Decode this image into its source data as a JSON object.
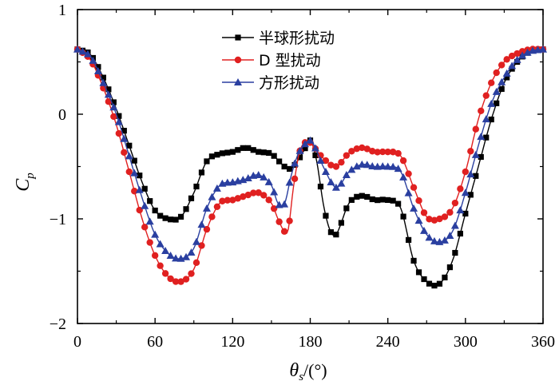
{
  "chart_data": {
    "type": "line",
    "title": "",
    "xlabel": "θs/(°)",
    "ylabel": "Cp",
    "xlabel_parts": {
      "symbol": "θ",
      "subscript": "s",
      "unit": "/(°)"
    },
    "ylabel_parts": {
      "symbol": "C",
      "subscript": "p"
    },
    "xlim": [
      0,
      360
    ],
    "ylim": [
      -2,
      1
    ],
    "xticks": [
      0,
      60,
      120,
      180,
      240,
      300,
      360
    ],
    "yticks": [
      1,
      0,
      -1,
      -2
    ],
    "grid": false,
    "legend_position": "top-center",
    "series": [
      {
        "name": "半球形扰动",
        "color": "#000000",
        "marker": "square",
        "x": [
          0,
          10,
          20,
          30,
          40,
          50,
          60,
          70,
          80,
          90,
          100,
          110,
          120,
          130,
          140,
          150,
          160,
          165,
          170,
          175,
          180,
          185,
          190,
          195,
          200,
          210,
          220,
          230,
          240,
          250,
          260,
          270,
          280,
          290,
          300,
          310,
          320,
          330,
          340,
          350,
          360
        ],
        "y": [
          0.62,
          0.57,
          0.35,
          0.05,
          -0.3,
          -0.65,
          -0.92,
          -1.0,
          -0.98,
          -0.75,
          -0.45,
          -0.38,
          -0.36,
          -0.32,
          -0.36,
          -0.38,
          -0.5,
          -0.52,
          -0.45,
          -0.35,
          -0.25,
          -0.45,
          -0.85,
          -1.1,
          -1.15,
          -0.85,
          -0.78,
          -0.82,
          -0.82,
          -0.9,
          -1.4,
          -1.6,
          -1.62,
          -1.4,
          -0.95,
          -0.5,
          -0.05,
          0.3,
          0.5,
          0.6,
          0.62
        ]
      },
      {
        "name": "D 型扰动",
        "color": "#e02020",
        "marker": "circle",
        "x": [
          0,
          10,
          20,
          30,
          40,
          50,
          60,
          70,
          80,
          90,
          100,
          110,
          120,
          130,
          140,
          150,
          155,
          160,
          163,
          167,
          172,
          178,
          182,
          190,
          200,
          210,
          220,
          230,
          240,
          250,
          260,
          270,
          280,
          290,
          300,
          310,
          320,
          330,
          340,
          350,
          360
        ],
        "y": [
          0.62,
          0.52,
          0.25,
          -0.1,
          -0.55,
          -1.0,
          -1.35,
          -1.55,
          -1.6,
          -1.48,
          -1.1,
          -0.85,
          -0.82,
          -0.78,
          -0.75,
          -0.85,
          -1.0,
          -1.12,
          -1.1,
          -0.7,
          -0.35,
          -0.26,
          -0.3,
          -0.42,
          -0.5,
          -0.37,
          -0.32,
          -0.36,
          -0.36,
          -0.4,
          -0.7,
          -0.98,
          -1.0,
          -0.9,
          -0.55,
          -0.05,
          0.3,
          0.5,
          0.58,
          0.62,
          0.62
        ]
      },
      {
        "name": "方形扰动",
        "color": "#2a3fa0",
        "marker": "triangle",
        "x": [
          0,
          10,
          20,
          30,
          40,
          50,
          60,
          70,
          80,
          90,
          100,
          110,
          120,
          130,
          140,
          150,
          155,
          160,
          165,
          170,
          175,
          180,
          185,
          190,
          200,
          210,
          220,
          230,
          240,
          250,
          260,
          270,
          280,
          290,
          300,
          310,
          320,
          330,
          340,
          350,
          360
        ],
        "y": [
          0.62,
          0.55,
          0.3,
          0.0,
          -0.4,
          -0.8,
          -1.15,
          -1.33,
          -1.38,
          -1.28,
          -0.9,
          -0.68,
          -0.65,
          -0.62,
          -0.58,
          -0.68,
          -0.85,
          -0.86,
          -0.6,
          -0.4,
          -0.3,
          -0.25,
          -0.35,
          -0.5,
          -0.7,
          -0.55,
          -0.48,
          -0.5,
          -0.5,
          -0.55,
          -0.9,
          -1.15,
          -1.22,
          -1.12,
          -0.75,
          -0.3,
          0.1,
          0.35,
          0.52,
          0.6,
          0.62
        ]
      }
    ]
  }
}
